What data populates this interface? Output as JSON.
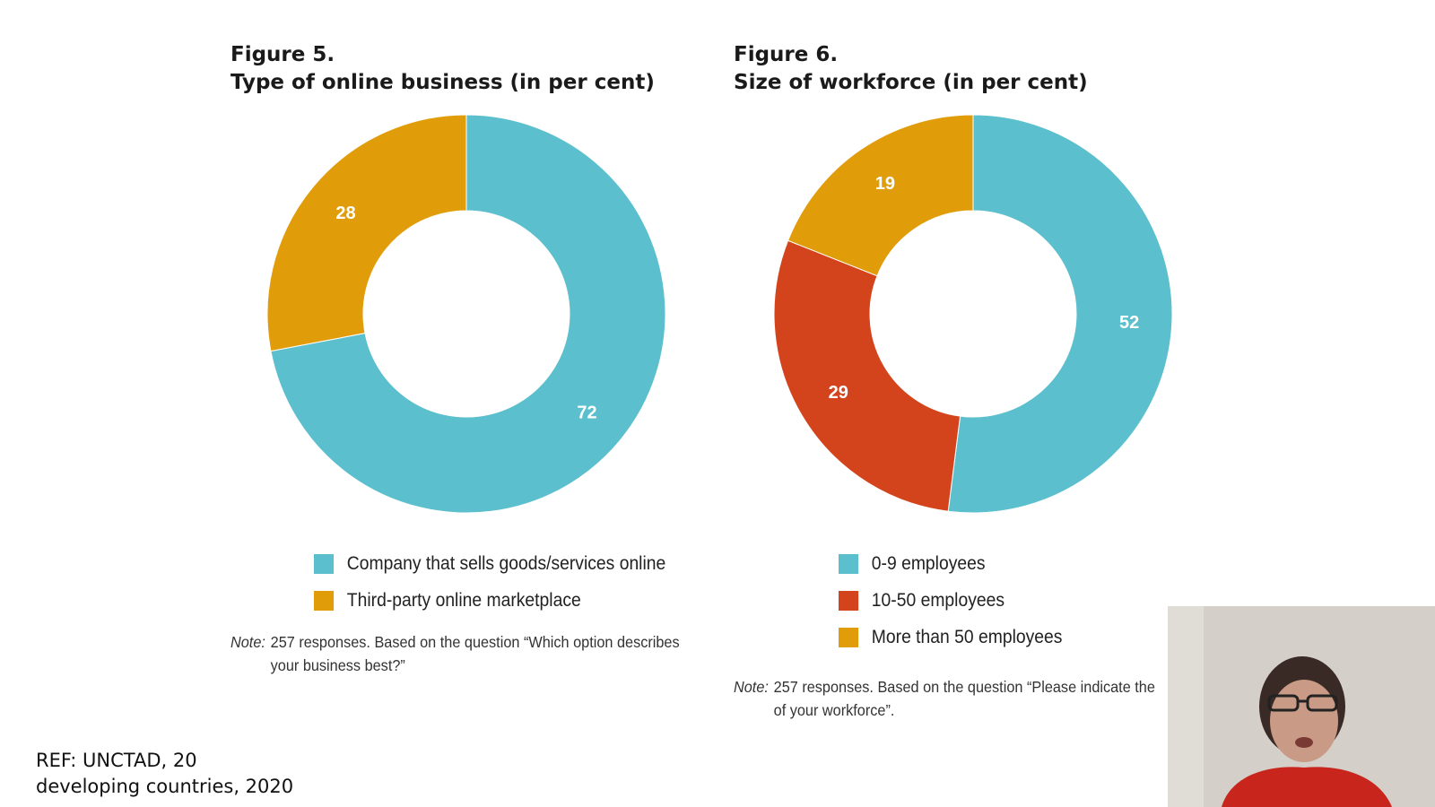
{
  "figures": [
    {
      "number_label": "Figure 5.",
      "title": "Type of online business (in per cent)",
      "legend": [
        {
          "label": "Company that sells goods/services online",
          "color": "#5bbfcd"
        },
        {
          "label": "Third-party online marketplace",
          "color": "#e19c0a"
        }
      ],
      "note_label": "Note:",
      "note_line1": "257 responses. Based on the question “Which option describes",
      "note_line2": "your business best?”"
    },
    {
      "number_label": "Figure 6.",
      "title": "Size of workforce (in per cent)",
      "legend": [
        {
          "label": "0-9 employees",
          "color": "#5bbfcd"
        },
        {
          "label": "10-50 employees",
          "color": "#d4441c"
        },
        {
          "label": "More than 50 employees",
          "color": "#e19c0a"
        }
      ],
      "note_label": "Note:",
      "note_line1": "257 responses. Based on the question “Please indicate the",
      "note_line2": "of your workforce”."
    }
  ],
  "chart_data": [
    {
      "type": "pie",
      "donut": true,
      "title": "Type of online business (in per cent)",
      "categories": [
        "Company that sells goods/services online",
        "Third-party online marketplace"
      ],
      "values": [
        72,
        28
      ],
      "data_labels": [
        "72",
        "28"
      ],
      "colors": [
        "#5bbfcd",
        "#e19c0a"
      ],
      "legend": "bottom"
    },
    {
      "type": "pie",
      "donut": true,
      "title": "Size of workforce (in per cent)",
      "categories": [
        "0-9 employees",
        "10-50 employees",
        "More than 50 employees"
      ],
      "values": [
        52,
        29,
        19
      ],
      "data_labels": [
        "52",
        "29",
        "19"
      ],
      "colors": [
        "#5bbfcd",
        "#d4441c",
        "#e19c0a"
      ],
      "legend": "bottom"
    }
  ],
  "reference": {
    "line1": "REF: UNCTAD, 20",
    "line2": "developing countries, 2020"
  },
  "webcam": {
    "colors": {
      "wall": "#d4cfc8",
      "hair": "#3a2a26",
      "skin": "#c99a86",
      "shirt": "#c8261d"
    }
  }
}
